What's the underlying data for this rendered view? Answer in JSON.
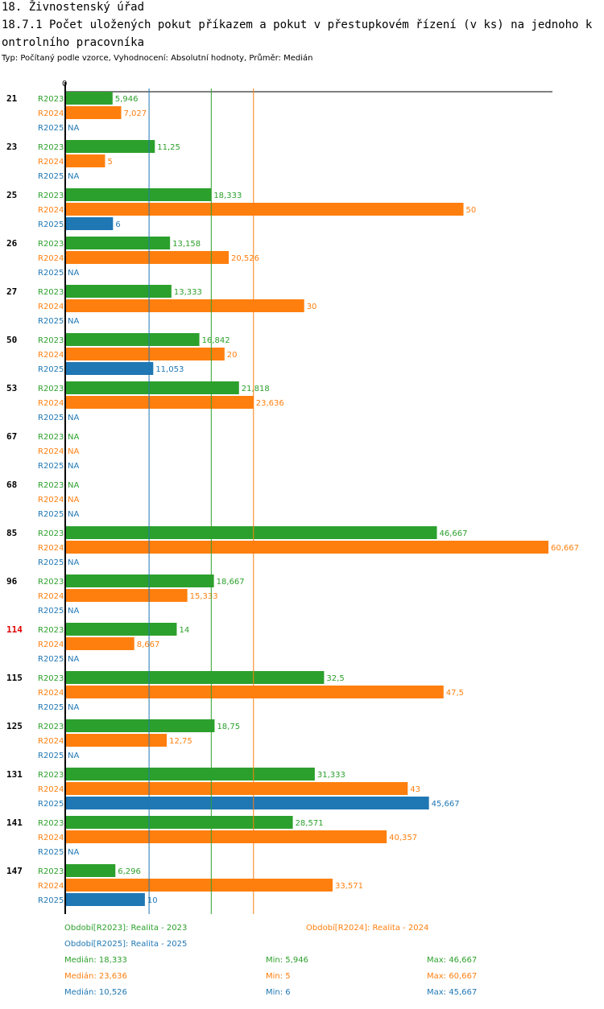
{
  "header": {
    "title": "18. Živnostenský úřad",
    "subtitle": "18.7.1 Počet uložených pokut příkazem a pokut v přestupkovém řízení (v ks) na jednoho kontrolního pracovníka",
    "type_line": "Typ: Počítaný podle vzorce, Vyhodnocení: Absolutní hodnoty, Průměr: Medián"
  },
  "chart_data": {
    "type": "bar",
    "orientation": "horizontal",
    "axis_zero_label": "0",
    "xlim": [
      0,
      60.667
    ],
    "series": [
      {
        "name": "R2023",
        "color": "#2ca02c",
        "median": 18.333,
        "median_label": "18,333"
      },
      {
        "name": "R2024",
        "color": "#ff7f0e",
        "median": 23.636,
        "median_label": "23,636"
      },
      {
        "name": "R2025",
        "color": "#1f77b4",
        "median": 10.526,
        "median_label": "10,526"
      }
    ],
    "categories": [
      {
        "label": "21",
        "highlight": false,
        "values": [
          5.946,
          7.027,
          null
        ],
        "labels": [
          "5,946",
          "7,027",
          "NA"
        ]
      },
      {
        "label": "23",
        "highlight": false,
        "values": [
          11.25,
          5,
          null
        ],
        "labels": [
          "11,25",
          "5",
          "NA"
        ]
      },
      {
        "label": "25",
        "highlight": false,
        "values": [
          18.333,
          50,
          6
        ],
        "labels": [
          "18,333",
          "50",
          "6"
        ]
      },
      {
        "label": "26",
        "highlight": false,
        "values": [
          13.158,
          20.526,
          null
        ],
        "labels": [
          "13,158",
          "20,526",
          "NA"
        ]
      },
      {
        "label": "27",
        "highlight": false,
        "values": [
          13.333,
          30,
          null
        ],
        "labels": [
          "13,333",
          "30",
          "NA"
        ]
      },
      {
        "label": "50",
        "highlight": false,
        "values": [
          16.842,
          20,
          11.053
        ],
        "labels": [
          "16,842",
          "20",
          "11,053"
        ]
      },
      {
        "label": "53",
        "highlight": false,
        "values": [
          21.818,
          23.636,
          null
        ],
        "labels": [
          "21,818",
          "23,636",
          "NA"
        ]
      },
      {
        "label": "67",
        "highlight": false,
        "values": [
          null,
          null,
          null
        ],
        "labels": [
          "NA",
          "NA",
          "NA"
        ]
      },
      {
        "label": "68",
        "highlight": false,
        "values": [
          null,
          null,
          null
        ],
        "labels": [
          "NA",
          "NA",
          "NA"
        ]
      },
      {
        "label": "85",
        "highlight": false,
        "values": [
          46.667,
          60.667,
          null
        ],
        "labels": [
          "46,667",
          "60,667",
          "NA"
        ]
      },
      {
        "label": "96",
        "highlight": false,
        "values": [
          18.667,
          15.333,
          null
        ],
        "labels": [
          "18,667",
          "15,333",
          "NA"
        ]
      },
      {
        "label": "114",
        "highlight": true,
        "values": [
          14,
          8.667,
          null
        ],
        "labels": [
          "14",
          "8,667",
          "NA"
        ]
      },
      {
        "label": "115",
        "highlight": false,
        "values": [
          32.5,
          47.5,
          null
        ],
        "labels": [
          "32,5",
          "47,5",
          "NA"
        ]
      },
      {
        "label": "125",
        "highlight": false,
        "values": [
          18.75,
          12.75,
          null
        ],
        "labels": [
          "18,75",
          "12,75",
          "NA"
        ]
      },
      {
        "label": "131",
        "highlight": false,
        "values": [
          31.333,
          43,
          45.667
        ],
        "labels": [
          "31,333",
          "43",
          "45,667"
        ]
      },
      {
        "label": "141",
        "highlight": false,
        "values": [
          28.571,
          40.357,
          null
        ],
        "labels": [
          "28,571",
          "40,357",
          "NA"
        ]
      },
      {
        "label": "147",
        "highlight": false,
        "values": [
          6.296,
          33.571,
          10
        ],
        "labels": [
          "6,296",
          "33,571",
          "10"
        ]
      }
    ]
  },
  "legend": {
    "period_r2023": "Období[R2023]: Realita - 2023",
    "period_r2024": "Období[R2024]: Realita - 2024",
    "period_r2025": "Období[R2025]: Realita - 2025",
    "stats": [
      {
        "median": "Medián: 18,333",
        "min": "Min: 5,946",
        "max": "Max: 46,667"
      },
      {
        "median": "Medián: 23,636",
        "min": "Min: 5",
        "max": "Max: 60,667"
      },
      {
        "median": "Medián: 10,526",
        "min": "Min: 6",
        "max": "Max: 45,667"
      }
    ]
  }
}
